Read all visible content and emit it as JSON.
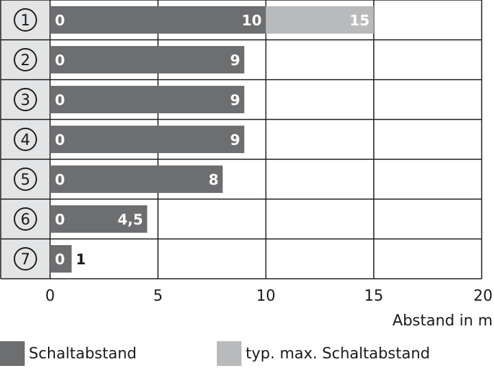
{
  "chart_data": {
    "type": "bar",
    "orientation": "horizontal",
    "categories": [
      "①",
      "②",
      "③",
      "④",
      "⑤",
      "⑥",
      "⑦"
    ],
    "series": [
      {
        "name": "Schaltabstand",
        "start": [
          0,
          0,
          0,
          0,
          0,
          0,
          0
        ],
        "values": [
          10,
          9,
          9,
          9,
          8,
          4.5,
          1
        ],
        "color": "#6d6e70"
      },
      {
        "name": "typ. max. Schaltabstand",
        "start": [
          10,
          null,
          null,
          null,
          null,
          null,
          null
        ],
        "values": [
          15,
          null,
          null,
          null,
          null,
          null,
          null
        ],
        "color": "#b9babb"
      }
    ],
    "start_labels": [
      "0",
      "0",
      "0",
      "0",
      "0",
      "0",
      "0"
    ],
    "value_labels": [
      "10",
      "9",
      "9",
      "9",
      "8",
      "4,5",
      "1"
    ],
    "max_labels": [
      "15",
      "",
      "",
      "",
      "",
      "",
      ""
    ],
    "xlim": [
      0,
      20
    ],
    "xticks": [
      0,
      5,
      10,
      15,
      20
    ],
    "xtick_labels": [
      "0",
      "5",
      "10",
      "15",
      "20"
    ],
    "xlabel": "Abstand in m",
    "ylabel": "",
    "grid": true,
    "legend_position": "bottom"
  },
  "legend": {
    "items": [
      {
        "label": "Schaltabstand",
        "color": "#6d6e70"
      },
      {
        "label": "typ. max. Schaltabstand",
        "color": "#b9babb"
      }
    ]
  }
}
